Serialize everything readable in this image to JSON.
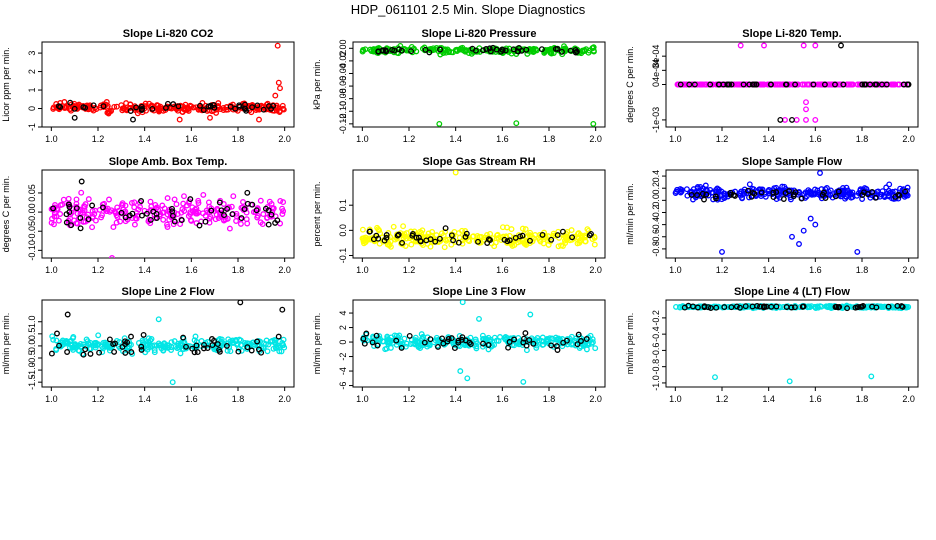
{
  "title": "HDP_061101  2.5 Min. Slope Diagnostics",
  "chart_data": [
    {
      "type": "scatter",
      "title": "Slope Li-820 CO2",
      "ylabel": "Licor ppm per min.",
      "xlim": [
        1.0,
        2.0
      ],
      "xticks": [
        "1.0",
        "1.2",
        "1.4",
        "1.6",
        "1.8",
        "2.0"
      ],
      "ylim": [
        -1.0,
        3.6
      ],
      "yticks": [
        -1,
        0,
        1,
        2,
        3
      ],
      "ytick_labels": [
        "-1",
        "0",
        "1",
        "2",
        "3"
      ],
      "series": [
        {
          "name": "primary",
          "color": "#ff0000",
          "n": 260,
          "center": 0.05,
          "spread": 0.22,
          "outliers": [
            [
              1.97,
              3.4
            ],
            [
              1.975,
              1.4
            ],
            [
              1.98,
              1.1
            ],
            [
              1.96,
              0.7
            ],
            [
              1.89,
              -0.6
            ],
            [
              1.55,
              -0.6
            ],
            [
              1.68,
              -0.5
            ]
          ]
        },
        {
          "name": "secondary",
          "color": "#000000",
          "n": 40,
          "center": 0.05,
          "spread": 0.22,
          "outliers": [
            [
              1.1,
              -0.5
            ],
            [
              1.35,
              -0.6
            ]
          ]
        }
      ]
    },
    {
      "type": "scatter",
      "title": "Slope Li-820 Pressure",
      "ylabel": "kPa per min.",
      "xlim": [
        1.0,
        2.0
      ],
      "xticks": [
        "1.0",
        "1.2",
        "1.4",
        "1.6",
        "1.8",
        "2.0"
      ],
      "ylim": [
        -0.125,
        0.01
      ],
      "yticks": [
        0.0,
        -0.02,
        -0.04,
        -0.06,
        -0.08,
        -0.1,
        -0.12
      ],
      "ytick_labels": [
        "0.00",
        "-0.02",
        "-0.04",
        "-0.06",
        "-0.08",
        "-0.10",
        "-0.12"
      ],
      "series": [
        {
          "name": "primary",
          "color": "#00cc00",
          "n": 220,
          "center": -0.003,
          "spread": 0.005,
          "outliers": [
            [
              1.33,
              -0.12
            ],
            [
              1.66,
              -0.119
            ],
            [
              1.99,
              -0.12
            ]
          ]
        },
        {
          "name": "secondary",
          "color": "#000000",
          "n": 40,
          "center": -0.003,
          "spread": 0.004,
          "outliers": []
        }
      ]
    },
    {
      "type": "scatter",
      "title": "Slope Li-820 Temp.",
      "ylabel": "degrees C per min.",
      "xlim": [
        1.0,
        2.0
      ],
      "xticks": [
        "1.0",
        "1.2",
        "1.4",
        "1.6",
        "1.8",
        "2.0"
      ],
      "ylim": [
        -0.0012,
        0.0012
      ],
      "yticks": [
        -0.001,
        0,
        0.0004,
        0.0008
      ],
      "ytick_labels": [
        "-1e-03",
        "0",
        "4e-04",
        "8e-04"
      ],
      "series": [
        {
          "name": "primary",
          "color": "#ff00ff",
          "n": 200,
          "center": 0.0,
          "spread": 0.0,
          "outliers": [
            [
              1.28,
              0.0011
            ],
            [
              1.38,
              0.0011
            ],
            [
              1.55,
              0.0011
            ],
            [
              1.6,
              0.0011
            ],
            [
              1.47,
              -0.001
            ],
            [
              1.52,
              -0.001
            ],
            [
              1.56,
              -0.001
            ],
            [
              1.6,
              -0.001
            ],
            [
              1.56,
              -0.0005
            ],
            [
              1.56,
              -0.0007
            ]
          ]
        },
        {
          "name": "secondary",
          "color": "#000000",
          "n": 40,
          "center": 0.0,
          "spread": 0.0,
          "outliers": [
            [
              1.71,
              0.0011
            ],
            [
              1.45,
              -0.001
            ],
            [
              1.5,
              -0.001
            ]
          ]
        }
      ]
    },
    {
      "type": "scatter",
      "title": "Slope Amb. Box Temp.",
      "ylabel": "degrees C per min.",
      "xlim": [
        1.0,
        2.0
      ],
      "xticks": [
        "1.0",
        "1.2",
        "1.4",
        "1.6",
        "1.8",
        "2.0"
      ],
      "ylim": [
        -0.12,
        0.11
      ],
      "yticks": [
        -0.1,
        -0.05,
        0.0,
        0.05
      ],
      "ytick_labels": [
        "-0.10",
        "-0.05",
        "0.00",
        "0.05"
      ],
      "series": [
        {
          "name": "primary",
          "color": "#ff00ff",
          "n": 260,
          "center": 0.0,
          "spread": 0.035,
          "outliers": [
            [
              1.26,
              -0.12
            ]
          ]
        },
        {
          "name": "secondary",
          "color": "#000000",
          "n": 50,
          "center": 0.0,
          "spread": 0.035,
          "outliers": [
            [
              1.13,
              0.08
            ]
          ]
        }
      ]
    },
    {
      "type": "scatter",
      "title": "Slope Gas Stream RH",
      "ylabel": "percent per min.",
      "xlim": [
        1.0,
        2.0
      ],
      "xticks": [
        "1.0",
        "1.2",
        "1.4",
        "1.6",
        "1.8",
        "2.0"
      ],
      "ylim": [
        -0.11,
        0.24
      ],
      "yticks": [
        -0.1,
        0.0,
        0.1
      ],
      "ytick_labels": [
        "-0.1",
        "0.0",
        "0.1"
      ],
      "series": [
        {
          "name": "primary",
          "color": "#ffff00",
          "n": 260,
          "center": -0.03,
          "spread": 0.035,
          "outliers": [
            [
              1.4,
              0.23
            ]
          ]
        },
        {
          "name": "secondary",
          "color": "#000000",
          "n": 45,
          "center": -0.03,
          "spread": 0.03,
          "outliers": []
        }
      ]
    },
    {
      "type": "scatter",
      "title": "Slope Sample Flow",
      "ylabel": "ml/min per min.",
      "xlim": [
        1.0,
        2.0
      ],
      "xticks": [
        "1.0",
        "1.2",
        "1.4",
        "1.6",
        "1.8",
        "2.0"
      ],
      "ylim": [
        -0.95,
        0.5
      ],
      "yticks": [
        0.4,
        0.2,
        0.0,
        -0.2,
        -0.4,
        -0.6,
        -0.8
      ],
      "ytick_labels": [
        "0.4",
        "0.2",
        "0.0",
        "-0.2",
        "-0.4",
        "-0.6",
        "-0.8"
      ],
      "series": [
        {
          "name": "primary",
          "color": "#0000ff",
          "n": 260,
          "center": 0.12,
          "spread": 0.1,
          "outliers": [
            [
              1.62,
              0.45
            ],
            [
              1.5,
              -0.6
            ],
            [
              1.55,
              -0.5
            ],
            [
              1.6,
              -0.4
            ],
            [
              1.2,
              -0.85
            ],
            [
              1.78,
              -0.85
            ],
            [
              1.53,
              -0.72
            ],
            [
              1.58,
              -0.3
            ]
          ]
        },
        {
          "name": "secondary",
          "color": "#000000",
          "n": 40,
          "center": 0.1,
          "spread": 0.08,
          "outliers": []
        }
      ]
    },
    {
      "type": "scatter",
      "title": "Slope Line 2 Flow",
      "ylabel": "ml/min per min.",
      "xlim": [
        1.0,
        2.0
      ],
      "xticks": [
        "1.0",
        "1.2",
        "1.4",
        "1.6",
        "1.8",
        "2.0"
      ],
      "ylim": [
        -1.7,
        1.9
      ],
      "yticks": [
        1.0,
        0.5,
        0.0,
        -0.5,
        -1.0,
        -1.5
      ],
      "ytick_labels": [
        "1.0",
        "0.5",
        "0.0",
        "-0.5",
        "-1.0",
        "-1.5"
      ],
      "series": [
        {
          "name": "primary",
          "color": "#00e5e5",
          "n": 260,
          "center": 0.05,
          "spread": 0.28,
          "outliers": [
            [
              1.52,
              -1.5
            ],
            [
              1.46,
              1.1
            ]
          ]
        },
        {
          "name": "secondary",
          "color": "#000000",
          "n": 45,
          "center": 0.0,
          "spread": 0.45,
          "outliers": [
            [
              1.81,
              1.8
            ],
            [
              1.99,
              1.5
            ],
            [
              1.07,
              1.3
            ]
          ]
        }
      ]
    },
    {
      "type": "scatter",
      "title": "Slope Line 3 Flow",
      "ylabel": "ml/min per min.",
      "xlim": [
        1.0,
        2.0
      ],
      "xticks": [
        "1.0",
        "1.2",
        "1.4",
        "1.6",
        "1.8",
        "2.0"
      ],
      "ylim": [
        -6.2,
        5.8
      ],
      "yticks": [
        4,
        2,
        0,
        -2,
        -4,
        -6
      ],
      "ytick_labels": [
        "4",
        "2",
        "0",
        "-2",
        "-4",
        "-6"
      ],
      "series": [
        {
          "name": "primary",
          "color": "#00e5e5",
          "n": 260,
          "center": 0.0,
          "spread": 0.9,
          "outliers": [
            [
              1.43,
              5.5
            ],
            [
              1.42,
              -4.0
            ],
            [
              1.45,
              -5.0
            ],
            [
              1.69,
              -5.5
            ],
            [
              1.72,
              3.8
            ],
            [
              1.5,
              3.2
            ]
          ]
        },
        {
          "name": "secondary",
          "color": "#000000",
          "n": 45,
          "center": 0.0,
          "spread": 1.0,
          "outliers": []
        }
      ]
    },
    {
      "type": "scatter",
      "title": "Slope Line 4 (LT) Flow",
      "ylabel": "ml/min per min.",
      "xlim": [
        1.0,
        2.0
      ],
      "xticks": [
        "1.0",
        "1.2",
        "1.4",
        "1.6",
        "1.8",
        "2.0"
      ],
      "ylim": [
        -1.05,
        0.02
      ],
      "yticks": [
        -0.2,
        -0.4,
        -0.6,
        -0.8,
        -1.0
      ],
      "ytick_labels": [
        "-0.2",
        "-0.4",
        "-0.6",
        "-0.8",
        "-1.0"
      ],
      "series": [
        {
          "name": "primary",
          "color": "#00e5e5",
          "n": 240,
          "center": -0.065,
          "spread": 0.012,
          "outliers": [
            [
              1.17,
              -0.93
            ],
            [
              1.49,
              -0.98
            ],
            [
              1.84,
              -0.92
            ]
          ]
        },
        {
          "name": "secondary",
          "color": "#000000",
          "n": 45,
          "center": -0.065,
          "spread": 0.015,
          "outliers": []
        }
      ]
    }
  ]
}
